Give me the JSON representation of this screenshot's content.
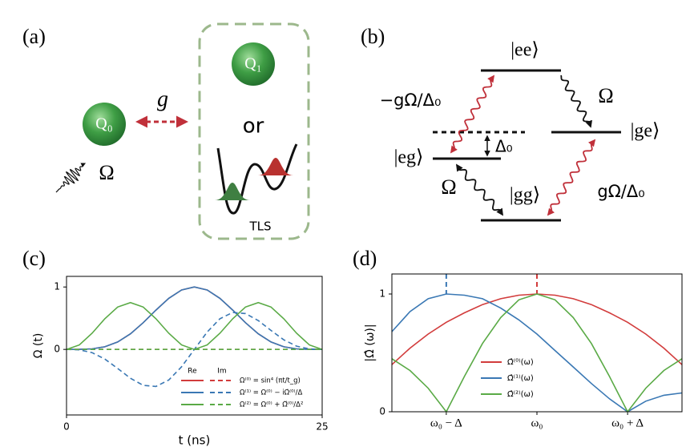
{
  "panels": {
    "a": {
      "label": "(a)",
      "coupling": "g",
      "qubit0": "Q₀",
      "qubit1": "Q₁",
      "or": "or",
      "drive": "Ω",
      "tls": "TLS"
    },
    "b": {
      "label": "(b)",
      "levels": {
        "ee": "|ee⟩",
        "ge": "|ge⟩",
        "eg": "|eg⟩",
        "gg": "|gg⟩"
      },
      "detuning": "Δ₀",
      "transitions": [
        "−gΩ/Δ₀",
        "Ω",
        "Ω",
        "gΩ/Δ₀"
      ]
    }
  },
  "chart_data": [
    {
      "type": "line",
      "label": "(c)",
      "xlabel": "t (ns)",
      "ylabel": "Ω (t)",
      "x": [
        0,
        1.25,
        2.5,
        3.75,
        5,
        6.25,
        7.5,
        8.75,
        10,
        11.25,
        12.5,
        13.75,
        15,
        16.25,
        17.5,
        18.75,
        20,
        21.25,
        22.5,
        23.75,
        25
      ],
      "xlim": [
        0,
        25
      ],
      "xticks": [
        0,
        25
      ],
      "ylim": [
        -1.05,
        1.17
      ],
      "yticks": [
        0,
        1
      ],
      "legend_columns": [
        "Re",
        "Im"
      ],
      "series": [
        {
          "name": "Ω⁽⁰⁾ = sin⁴ (πt/t_g)",
          "color": "#d23c3c",
          "re": [
            0,
            0.0006,
            0.0091,
            0.0425,
            0.1194,
            0.25,
            0.4284,
            0.6302,
            0.8181,
            0.9517,
            1,
            0.9517,
            0.8181,
            0.6302,
            0.4284,
            0.25,
            0.1194,
            0.0425,
            0.0091,
            0.0006,
            0
          ],
          "im": [
            0,
            0,
            0,
            0,
            0,
            0,
            0,
            0,
            0,
            0,
            0,
            0,
            0,
            0,
            0,
            0,
            0,
            0,
            0,
            0,
            0
          ]
        },
        {
          "name": "Ω⁽¹⁾ = Ω⁽⁰⁾ − iΩ̇⁽⁰⁾/Δ",
          "color": "#3a78b4",
          "re": [
            0,
            0.0006,
            0.0091,
            0.0425,
            0.1194,
            0.25,
            0.4284,
            0.6302,
            0.8181,
            0.9517,
            1,
            0.9517,
            0.8181,
            0.6302,
            0.4284,
            0.25,
            0.1194,
            0.0425,
            0.0091,
            0.0006,
            0
          ],
          "im": [
            0,
            -0.007,
            -0.052,
            -0.154,
            -0.304,
            -0.462,
            -0.575,
            -0.593,
            -0.491,
            -0.278,
            0,
            0.278,
            0.491,
            0.593,
            0.575,
            0.462,
            0.304,
            0.154,
            0.052,
            0.007,
            0
          ]
        },
        {
          "name": "Ω⁽²⁾ = Ω⁽⁰⁾ + Ω̈⁽⁰⁾/Δ²",
          "color": "#5aaa46",
          "re": [
            0,
            0.0716,
            0.259,
            0.491,
            0.678,
            0.75,
            0.678,
            0.491,
            0.259,
            0.072,
            0,
            0.072,
            0.259,
            0.491,
            0.678,
            0.75,
            0.678,
            0.491,
            0.259,
            0.0716,
            0
          ],
          "im": [
            0,
            0,
            0,
            0,
            0,
            0,
            0,
            0,
            0,
            0,
            0,
            0,
            0,
            0,
            0,
            0,
            0,
            0,
            0,
            0,
            0
          ]
        }
      ]
    },
    {
      "type": "line",
      "label": "(d)",
      "ylabel": "|Ω̂ (ω)|",
      "x": [
        -1.6,
        -1.4,
        -1.2,
        -1,
        -0.8,
        -0.6,
        -0.4,
        -0.2,
        0,
        0.2,
        0.4,
        0.6,
        0.8,
        1,
        1.2,
        1.4,
        1.6
      ],
      "xlim": [
        -1.6,
        1.6
      ],
      "xticks": [
        {
          "value": -1,
          "label": "ω₀ − Δ"
        },
        {
          "value": 0,
          "label": "ω₀"
        },
        {
          "value": 1,
          "label": "ω₀ + Δ"
        }
      ],
      "ylim": [
        0,
        1.17
      ],
      "yticks": [
        0,
        1
      ],
      "series": [
        {
          "name": "Ω̂⁽⁰⁾(ω)",
          "color": "#d23c3c",
          "values": [
            0.4,
            0.54,
            0.66,
            0.76,
            0.84,
            0.91,
            0.96,
            0.99,
            1,
            0.99,
            0.96,
            0.91,
            0.84,
            0.76,
            0.66,
            0.54,
            0.4
          ]
        },
        {
          "name": "Ω̂⁽¹⁾(ω)",
          "color": "#3a78b4",
          "values": [
            0.68,
            0.85,
            0.96,
            1,
            0.99,
            0.96,
            0.88,
            0.78,
            0.66,
            0.52,
            0.38,
            0.24,
            0.11,
            0,
            0.09,
            0.14,
            0.16
          ]
        },
        {
          "name": "Ω̂⁽²⁾(ω)",
          "color": "#5aaa46",
          "values": [
            0.45,
            0.35,
            0.2,
            0,
            0.3,
            0.58,
            0.8,
            0.95,
            1,
            0.95,
            0.8,
            0.58,
            0.3,
            0,
            0.2,
            0.35,
            0.45
          ]
        }
      ],
      "markers": [
        {
          "x": -1,
          "color": "#3a78b4"
        },
        {
          "x": 0,
          "color": "#d23c3c"
        }
      ]
    }
  ]
}
